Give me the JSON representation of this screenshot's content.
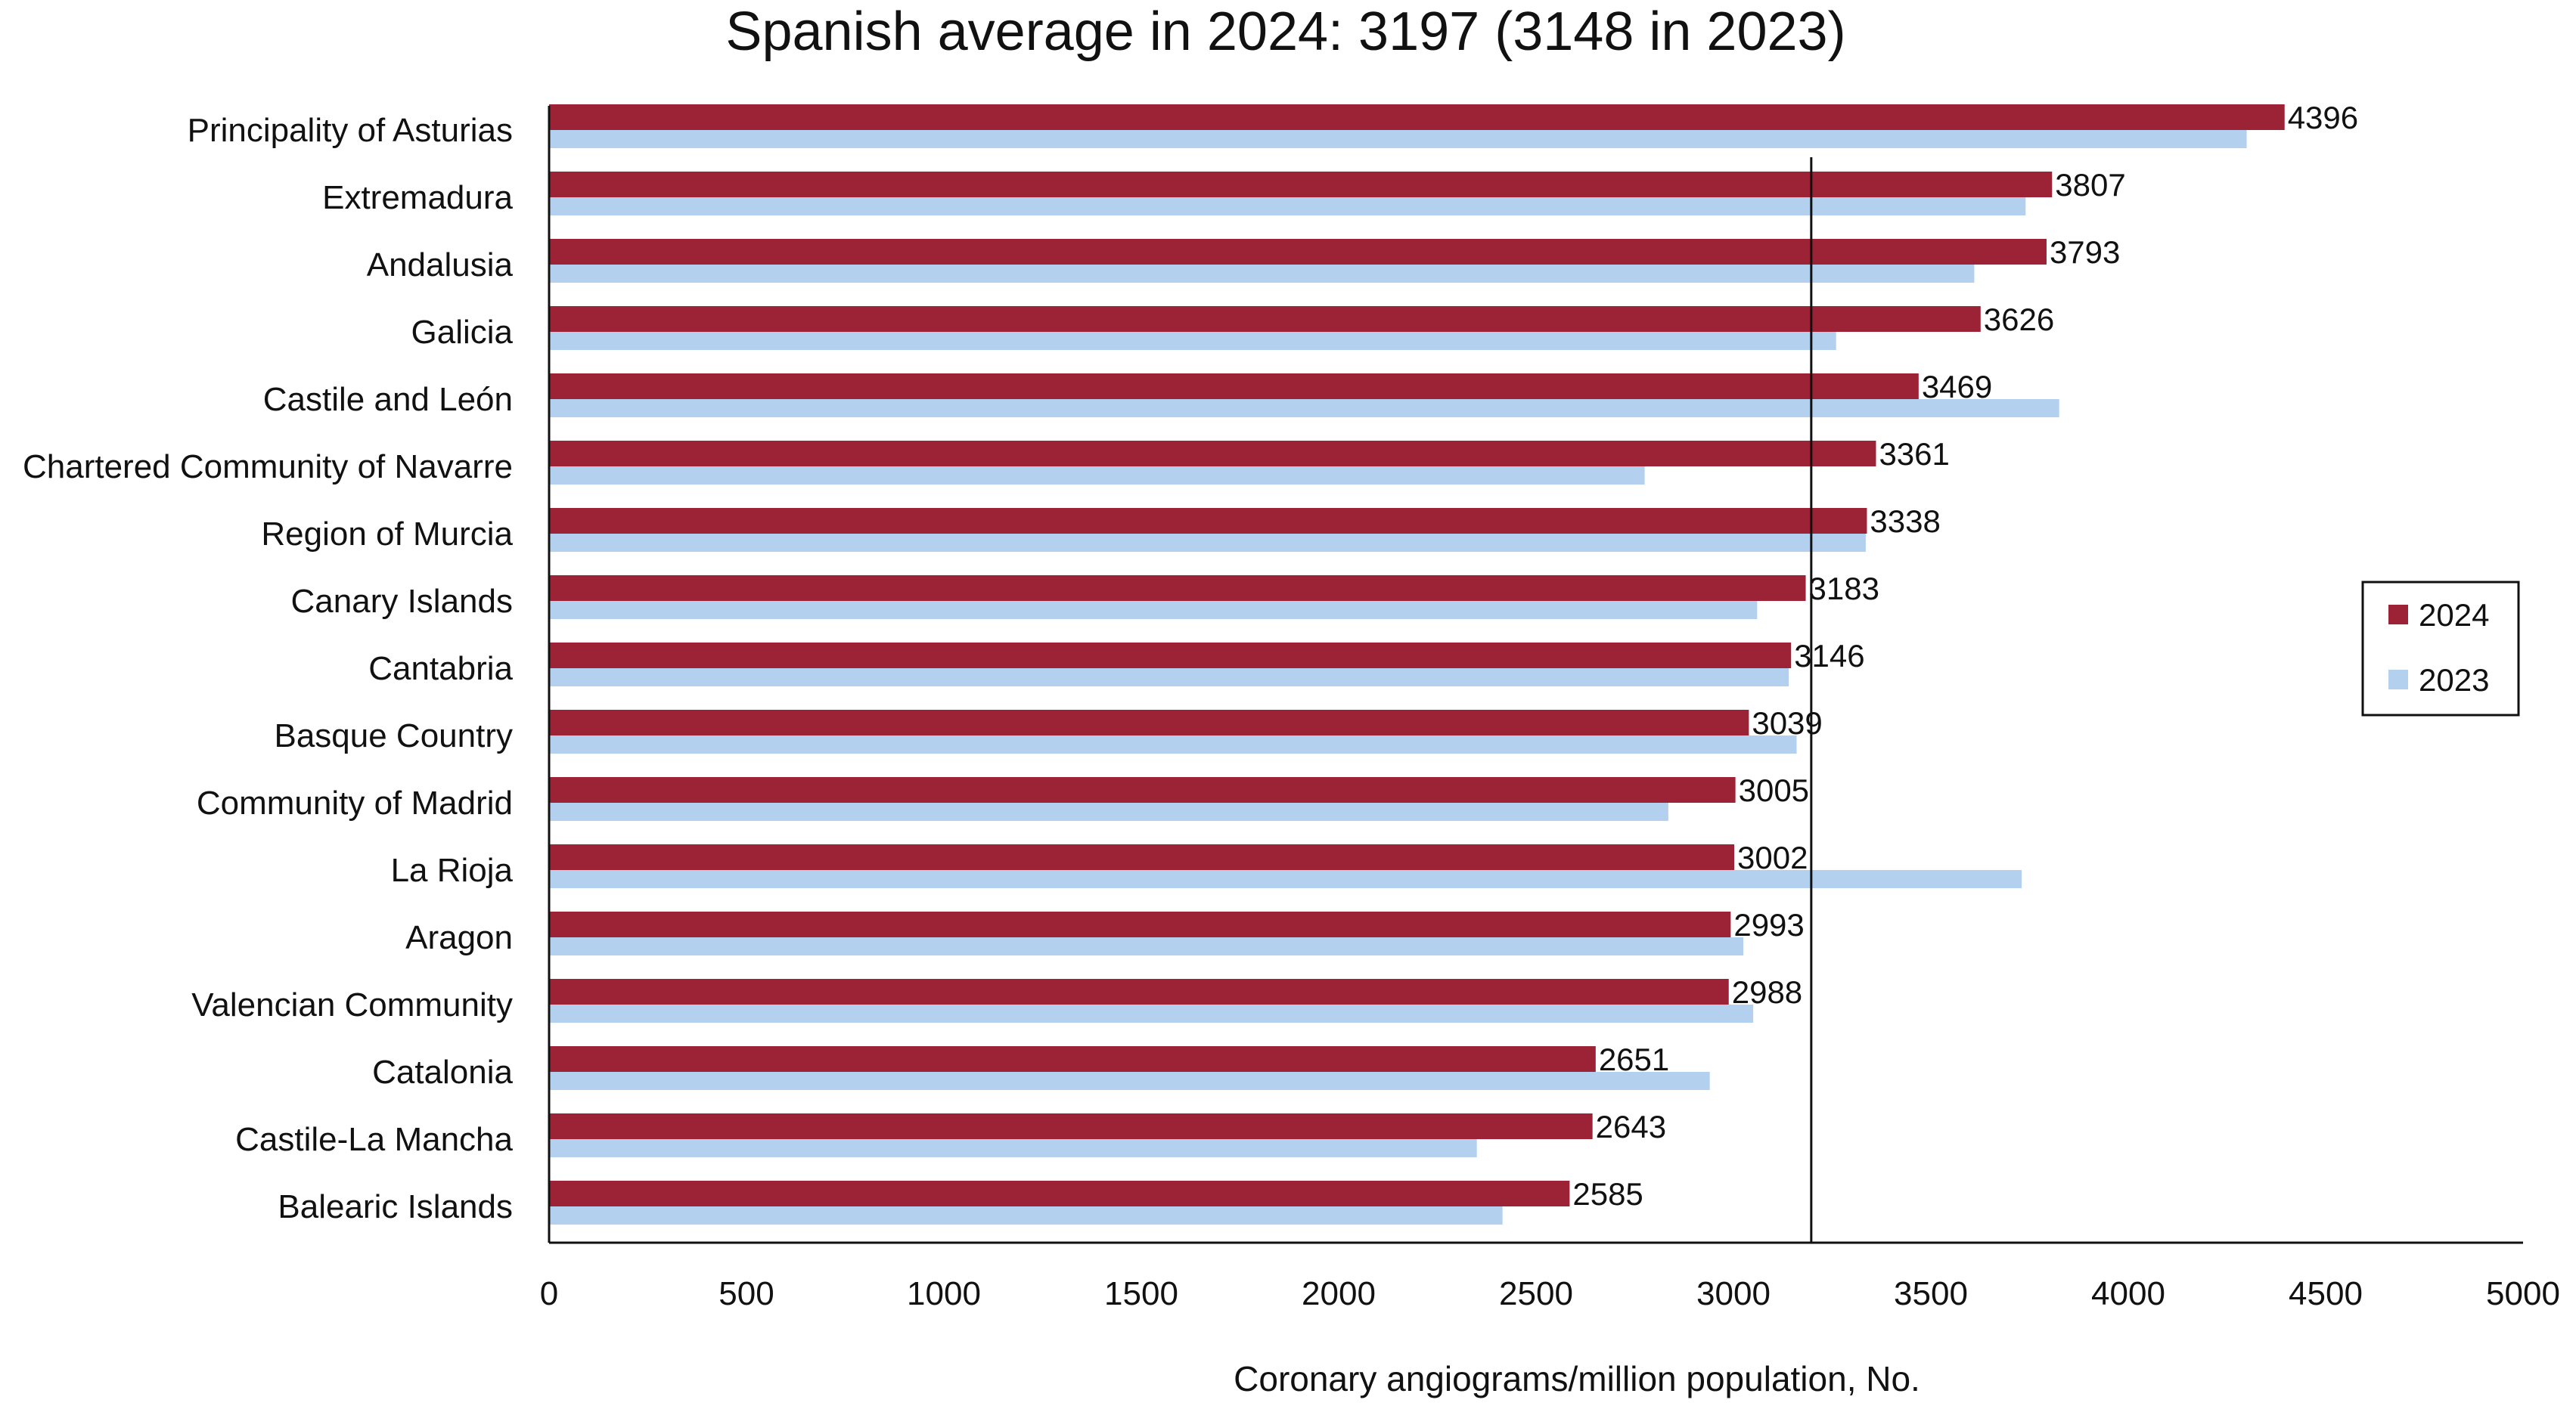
{
  "chart_data": {
    "type": "bar",
    "orientation": "horizontal",
    "title": "Spanish average in 2024: 3197 (3148 in 2023)",
    "xlabel": "Coronary angiograms/million population, No.",
    "ylabel": "",
    "xlim": [
      0,
      5000
    ],
    "xticks": [
      "0",
      "500",
      "1000",
      "1500",
      "2000",
      "2500",
      "3000",
      "3500",
      "4000",
      "4500",
      "5000"
    ],
    "grid": false,
    "legend_position": "right",
    "reference_line": {
      "label": "Spanish average 2024",
      "value": 3197
    },
    "categories": [
      "Principality of Asturias",
      "Extremadura",
      "Andalusia",
      "Galicia",
      "Castile and León",
      "Chartered Community of Navarre",
      "Region of Murcia",
      "Canary Islands",
      "Cantabria",
      "Basque Country",
      "Community of Madrid",
      "La Rioja",
      "Aragon",
      "Valencian Community",
      "Catalonia",
      "Castile-La Mancha",
      "Balearic Islands"
    ],
    "series": [
      {
        "name": "2024",
        "color": "#9b2335",
        "labeled": true,
        "values": [
          4396,
          3807,
          3793,
          3626,
          3469,
          3361,
          3338,
          3183,
          3146,
          3039,
          3005,
          3002,
          2993,
          2988,
          2651,
          2643,
          2585
        ]
      },
      {
        "name": "2023",
        "color": "#b3d1ee",
        "labeled": false,
        "values": [
          4300,
          3740,
          3610,
          3260,
          3825,
          2775,
          3335,
          3060,
          3140,
          3160,
          2835,
          3730,
          3025,
          3050,
          2940,
          2350,
          2415
        ]
      }
    ]
  }
}
